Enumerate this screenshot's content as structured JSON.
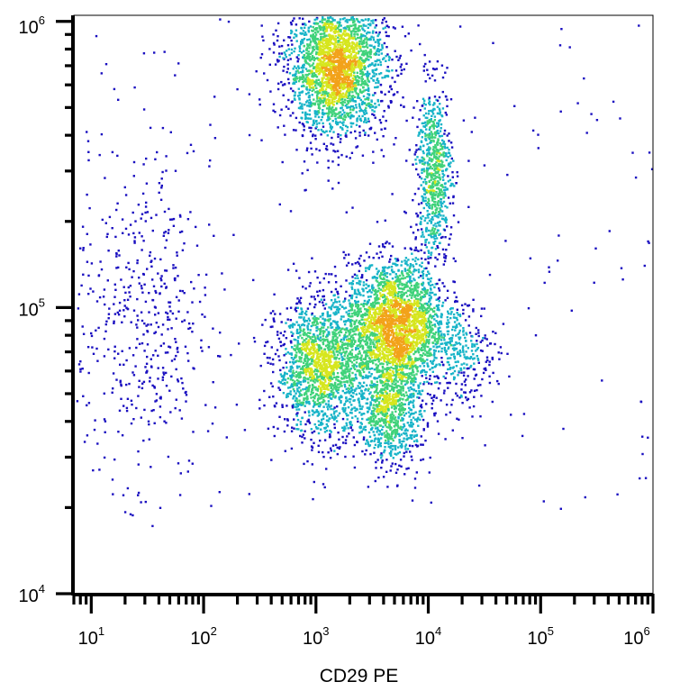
{
  "chart_data": {
    "type": "scatter",
    "subtype": "flow-cytometry-density-dot-plot",
    "title": "",
    "xlabel": "CD29 PE",
    "ylabel": "",
    "x_scale": "log",
    "y_scale": "log",
    "xlim": [
      7,
      1000000
    ],
    "ylim": [
      10000,
      1050000
    ],
    "x_ticks": [
      {
        "value": 10,
        "base": "10",
        "exp": "1"
      },
      {
        "value": 100,
        "base": "10",
        "exp": "2"
      },
      {
        "value": 1000,
        "base": "10",
        "exp": "3"
      },
      {
        "value": 10000,
        "base": "10",
        "exp": "4"
      },
      {
        "value": 100000,
        "base": "10",
        "exp": "5"
      },
      {
        "value": 1000000,
        "base": "10",
        "exp": "6"
      }
    ],
    "y_ticks": [
      {
        "value": 10000,
        "base": "10",
        "exp": "4"
      },
      {
        "value": 100000,
        "base": "10",
        "exp": "5"
      },
      {
        "value": 1000000,
        "base": "10",
        "exp": "6"
      }
    ],
    "grid": false,
    "legend": "none",
    "density_colormap": [
      "#1a0fc0",
      "#18b4c8",
      "#3fd27a",
      "#d6e61e",
      "#f2a21a",
      "#e81616"
    ],
    "populations": [
      {
        "center_x": 1500,
        "center_y": 700000,
        "spread_x_log": 0.22,
        "spread_y_log": 0.12,
        "weight": 0.28
      },
      {
        "center_x": 5000,
        "center_y": 88000,
        "spread_x_log": 0.22,
        "spread_y_log": 0.11,
        "weight": 0.28
      },
      {
        "center_x": 1100,
        "center_y": 62000,
        "spread_x_log": 0.2,
        "spread_y_log": 0.12,
        "weight": 0.18
      },
      {
        "center_x": 11000,
        "center_y": 300000,
        "spread_x_log": 0.08,
        "spread_y_log": 0.15,
        "weight": 0.08
      },
      {
        "center_x": 4500,
        "center_y": 45000,
        "spread_x_log": 0.15,
        "spread_y_log": 0.1,
        "weight": 0.1
      },
      {
        "center_x": 28,
        "center_y": 90000,
        "spread_x_log": 0.3,
        "spread_y_log": 0.28,
        "weight": 0.05
      },
      {
        "center_x": 20000,
        "center_y": 70000,
        "spread_x_log": 0.15,
        "spread_y_log": 0.1,
        "weight": 0.03
      }
    ]
  }
}
